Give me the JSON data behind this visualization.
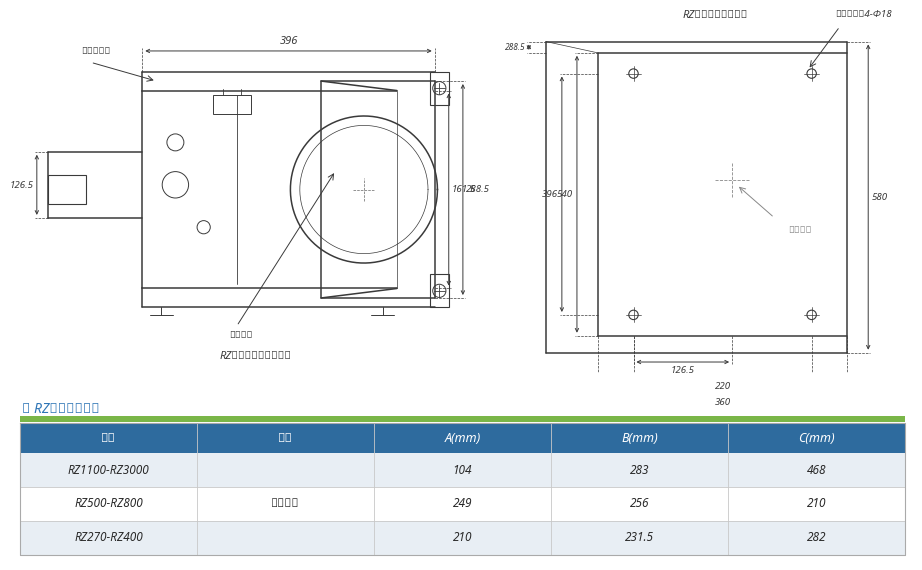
{
  "bg_color": "#ffffff",
  "left_diagram": {
    "caption": "RZ泵金属液力端俯视图",
    "label_dijiao": "地脚螺栓孔",
    "label_motor": "电机中心",
    "dim_396": "396",
    "dim_126_5": "126.5",
    "dim_161_5": "161.5",
    "dim_288_5": "288.5"
  },
  "right_diagram": {
    "caption": "RZ泵地脚螺栓孔尺寸",
    "label_hole": "地脚螺栓孔4-Φ18",
    "label_motor": "电机中心",
    "dim_540": "540",
    "dim_396": "396",
    "dim_580": "580",
    "dim_126_5": "126.5",
    "dim_220": "220",
    "dim_360": "360",
    "dim_288_5": "288.5"
  },
  "section_title": "● RZ系列安装尺寸",
  "section_title_color": "#2e75b6",
  "table": {
    "header_bg": "#2e6b9e",
    "header_text_color": "#ffffff",
    "row_bg_odd": "#e8eef4",
    "row_bg_even": "#ffffff",
    "top_border_color": "#7ab648",
    "columns": [
      "型号",
      "材质",
      "A(mm)",
      "B(mm)",
      "C(mm)"
    ],
    "rows": [
      [
        "RZ1100-RZ3000",
        "",
        "104",
        "283",
        "468"
      ],
      [
        "RZ500-RZ800",
        "金属泵头",
        "249",
        "256",
        "210"
      ],
      [
        "RZ270-RZ400",
        "",
        "210",
        "231.5",
        "282"
      ]
    ]
  },
  "line_color": "#3a3a3a",
  "dim_color": "#3a3a3a",
  "dim_fontsize": 7,
  "caption_fontsize": 8,
  "label_fontsize": 7
}
